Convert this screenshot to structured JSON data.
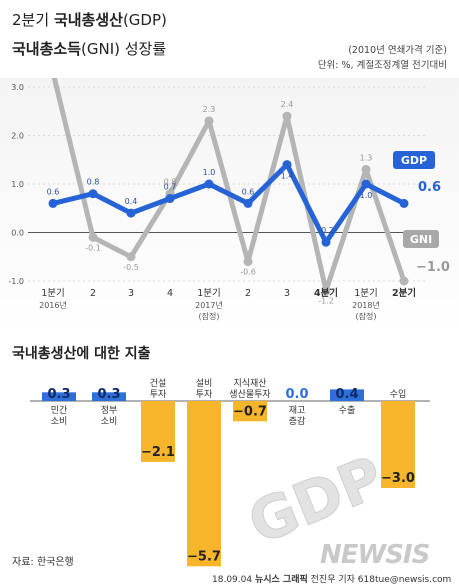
{
  "header": {
    "title_prefix": "2분기",
    "title_main": "국내총생산",
    "title_suffix": "(GDP)",
    "title2_main": "국내총소득",
    "title2_suffix": "(GNI) 성장률",
    "note1": "(2010년 연쇄가격 기준)",
    "note2": "단위: %, 계절조정계열 전기대비"
  },
  "colors": {
    "gdp": "#2563d6",
    "gni": "#b5b5b5",
    "bar_pos": "#2f6fd8",
    "bar_neg": "#f6b52a"
  },
  "chart_data": [
    {
      "type": "line",
      "ylim": [
        -1.0,
        3.0
      ],
      "yticks": [
        "3.0",
        "2.0",
        "1.0",
        "0.0",
        "-1.0"
      ],
      "categories": [
        "1분기",
        "2",
        "3",
        "4",
        "1분기",
        "2",
        "3",
        "4분기",
        "1분기",
        "2분기"
      ],
      "category_sublabels": [
        "2016년",
        "",
        "",
        "",
        "2017년\n(잠정)",
        "",
        "",
        "",
        "2018년\n(잠정)",
        ""
      ],
      "series": [
        {
          "name": "GDP",
          "values": [
            0.6,
            0.8,
            0.4,
            0.7,
            1.0,
            0.6,
            1.4,
            -0.2,
            1.0,
            0.6
          ],
          "labels": [
            "0.6",
            "0.8",
            "0.4",
            "0.7",
            "1.0",
            "0.6",
            "1.4",
            "-0.2",
            "1.0",
            "0.6"
          ]
        },
        {
          "name": "GNI",
          "values": [
            3.3,
            -0.1,
            -0.5,
            0.8,
            2.3,
            -0.6,
            2.4,
            -1.2,
            1.3,
            -1.0
          ],
          "labels": [
            "3.3",
            "-0.1",
            "-0.5",
            "0.8",
            "2.3",
            "-0.6",
            "2.4",
            "-1.2",
            "1.3",
            "−1.0"
          ]
        }
      ]
    },
    {
      "type": "bar",
      "title": "국내총생산에 대한 지출",
      "categories": [
        "민간\n소비",
        "정부\n소비",
        "건설\n투자",
        "설비\n투자",
        "지식재산\n생산물투자",
        "재고\n증감",
        "수출",
        "수입"
      ],
      "values": [
        0.3,
        0.3,
        -2.1,
        -5.7,
        -0.7,
        0.0,
        0.4,
        -3.0
      ],
      "labels": [
        "0.3",
        "0.3",
        "−2.1",
        "−5.7",
        "−0.7",
        "0.0",
        "0.4",
        "−3.0"
      ]
    }
  ],
  "watermark": "GDP",
  "footer": {
    "source": "자료: 한국은행",
    "credit_date": "18.09.04",
    "credit_org": "뉴시스 그래픽",
    "credit_person": "전진우 기자 618tue@newsis.com",
    "logo": "NEWSIS"
  }
}
